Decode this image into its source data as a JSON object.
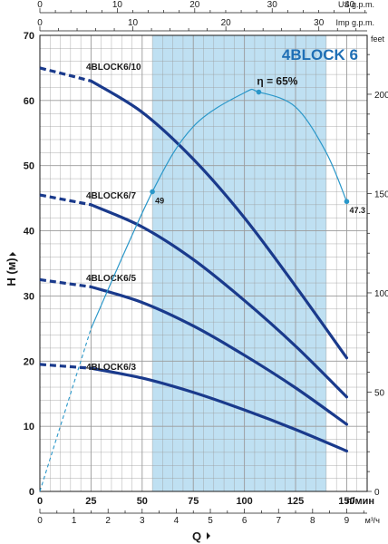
{
  "chart_data": {
    "type": "line",
    "title": "4BLOCK 6",
    "ylabel": "H (м)",
    "xlabel": "Q",
    "x_unit": "л/мин",
    "x_range": [
      0,
      160
    ],
    "y_range": [
      0,
      70
    ],
    "x_ticks": [
      "0",
      "25",
      "50",
      "75",
      "100",
      "125",
      "150"
    ],
    "y_ticks": [
      "0",
      "10",
      "20",
      "30",
      "40",
      "50",
      "60",
      "70"
    ],
    "secondary_axes": {
      "top1": {
        "unit": "US g.p.m.",
        "ticks": [
          "0",
          "10",
          "20",
          "30",
          "40"
        ]
      },
      "top2": {
        "unit": "Imp g.p.m.",
        "ticks": [
          "0",
          "10",
          "20",
          "30"
        ]
      },
      "right": {
        "unit": "feet",
        "ticks": [
          "0",
          "50",
          "100",
          "150",
          "200"
        ]
      },
      "bottom2": {
        "unit": "м³/ч",
        "ticks": [
          "0",
          "1",
          "2",
          "3",
          "4",
          "5",
          "6",
          "7",
          "8",
          "9"
        ]
      }
    },
    "recommended_range": [
      55,
      140
    ],
    "series": [
      {
        "name": "4BLOCK6/10",
        "x": [
          0,
          25,
          50,
          75,
          100,
          125,
          150
        ],
        "y": [
          65,
          63,
          58.2,
          51,
          42,
          31.5,
          20.5
        ],
        "dashed_until": 25
      },
      {
        "name": "4BLOCK6/7",
        "x": [
          0,
          25,
          50,
          75,
          100,
          125,
          150
        ],
        "y": [
          45.5,
          44,
          40.6,
          35.6,
          29.3,
          22.3,
          14.5
        ],
        "dashed_until": 25
      },
      {
        "name": "4BLOCK6/5",
        "x": [
          0,
          25,
          50,
          75,
          100,
          125,
          150
        ],
        "y": [
          32.5,
          31.4,
          29,
          25.4,
          20.9,
          15.9,
          10.3
        ],
        "dashed_until": 25
      },
      {
        "name": "4BLOCK6/3",
        "x": [
          0,
          25,
          50,
          75,
          100,
          125,
          150
        ],
        "y": [
          19.5,
          18.9,
          17.4,
          15.2,
          12.5,
          9.5,
          6.2
        ],
        "dashed_until": 25
      }
    ],
    "efficiency": {
      "label": "η = 65%",
      "x": [
        0,
        25,
        55,
        75,
        100,
        107,
        125,
        140,
        150
      ],
      "y": [
        0,
        25,
        46,
        56,
        61.2,
        61.3,
        59,
        52,
        44.5
      ],
      "dashed_until": 25,
      "points": [
        {
          "x": 55,
          "y": 46,
          "label": "49"
        },
        {
          "x": 107,
          "y": 61.3,
          "label": ""
        },
        {
          "x": 150,
          "y": 44.5,
          "label": "47.3"
        }
      ]
    },
    "grid": true,
    "colors": {
      "pump_curve": "#1a3a8c",
      "efficiency": "#2a97c9",
      "band": "#bfe0f2",
      "grid": "#9a9a9a",
      "title": "#1f6fb5"
    }
  }
}
